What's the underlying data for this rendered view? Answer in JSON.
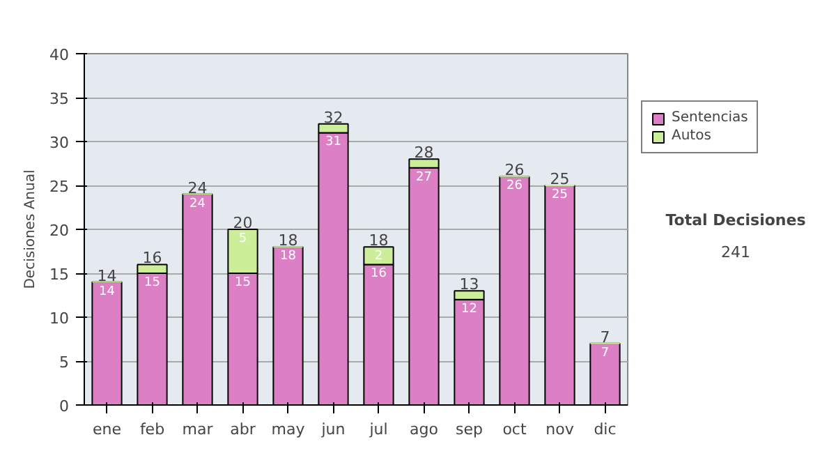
{
  "chart_data": {
    "type": "bar",
    "stacked": true,
    "ylabel": "Decisiones Anual",
    "categories": [
      "ene",
      "feb",
      "mar",
      "abr",
      "may",
      "jun",
      "jul",
      "ago",
      "sep",
      "oct",
      "nov",
      "dic"
    ],
    "series": [
      {
        "name": "Sentencias",
        "color": "#dd7fc4",
        "values": [
          14,
          15,
          24,
          15,
          18,
          31,
          16,
          27,
          12,
          26,
          25,
          7
        ],
        "value_labels": [
          "14",
          "15",
          "24",
          "15",
          "18",
          "31",
          "16",
          "27",
          "12",
          "26",
          "25",
          "7"
        ]
      },
      {
        "name": "Autos",
        "color": "#ccee99",
        "values": [
          0,
          1,
          0,
          5,
          0,
          1,
          2,
          1,
          1,
          0,
          0,
          0
        ],
        "value_labels": [
          null,
          null,
          null,
          "5",
          null,
          null,
          "2",
          null,
          null,
          null,
          null,
          null
        ]
      }
    ],
    "totals": [
      "14",
      "16",
      "24",
      "20",
      "18",
      "32",
      "18",
      "28",
      "13",
      "26",
      "25",
      "7"
    ],
    "ylim": [
      0,
      40
    ],
    "yticks": [
      0,
      5,
      10,
      15,
      20,
      25,
      30,
      35,
      40
    ],
    "grid": "y",
    "legend": "right",
    "annotations": [
      "Total Decisiones",
      "241"
    ]
  }
}
